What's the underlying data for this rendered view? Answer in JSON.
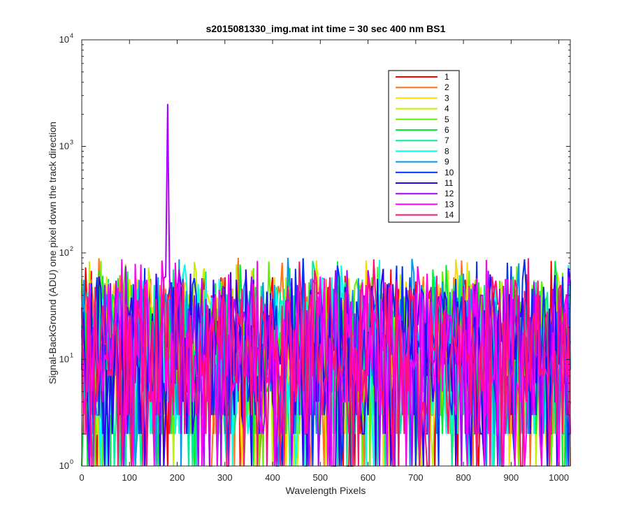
{
  "chart_data": {
    "type": "line",
    "title": "s2015081330_img.mat int time = 30 sec  400 nm BS1",
    "xlabel": "Wavelength Pixels",
    "ylabel": "Signal-BackGround (ADU) one pixel down the track direction",
    "xlim": [
      0,
      1024
    ],
    "ylim": [
      1,
      10000
    ],
    "yscale": "log",
    "grid": false,
    "legend_position": "top-right",
    "x_ticks": [
      "0",
      "100",
      "200",
      "300",
      "400",
      "500",
      "600",
      "700",
      "800",
      "900",
      "1000"
    ],
    "x_tick_values": [
      0,
      100,
      200,
      300,
      400,
      500,
      600,
      700,
      800,
      900,
      1000
    ],
    "y_ticks": [
      {
        "value": 1,
        "base": "10",
        "exp": "0"
      },
      {
        "value": 10,
        "base": "10",
        "exp": "1"
      },
      {
        "value": 100,
        "base": "10",
        "exp": "2"
      },
      {
        "value": 1000,
        "base": "10",
        "exp": "3"
      },
      {
        "value": 10000,
        "base": "10",
        "exp": "4"
      }
    ],
    "series": [
      {
        "name": "1",
        "color": "#ff0000",
        "typical_range": [
          2,
          60
        ]
      },
      {
        "name": "2",
        "color": "#ff7316",
        "typical_range": [
          2,
          60
        ]
      },
      {
        "name": "3",
        "color": "#ffd700",
        "typical_range": [
          2,
          60
        ]
      },
      {
        "name": "4",
        "color": "#c8ee00",
        "typical_range": [
          2,
          60
        ]
      },
      {
        "name": "5",
        "color": "#66ee00",
        "typical_range": [
          2,
          60
        ]
      },
      {
        "name": "6",
        "color": "#00ee33",
        "typical_range": [
          2,
          60
        ]
      },
      {
        "name": "7",
        "color": "#00ee99",
        "typical_range": [
          2,
          60
        ]
      },
      {
        "name": "8",
        "color": "#00ffee",
        "typical_range": [
          2,
          60
        ]
      },
      {
        "name": "9",
        "color": "#0099ee",
        "typical_range": [
          2,
          60
        ]
      },
      {
        "name": "10",
        "color": "#0033ee",
        "typical_range": [
          2,
          60
        ]
      },
      {
        "name": "11",
        "color": "#3300ee",
        "typical_range": [
          2,
          60
        ]
      },
      {
        "name": "12",
        "color": "#aa00ff",
        "typical_range": [
          2,
          60
        ],
        "peak": {
          "x": 180,
          "y": 2500
        }
      },
      {
        "name": "13",
        "color": "#ff00ee",
        "typical_range": [
          2,
          60
        ]
      },
      {
        "name": "14",
        "color": "#ff1177",
        "typical_range": [
          2,
          60
        ]
      }
    ]
  }
}
